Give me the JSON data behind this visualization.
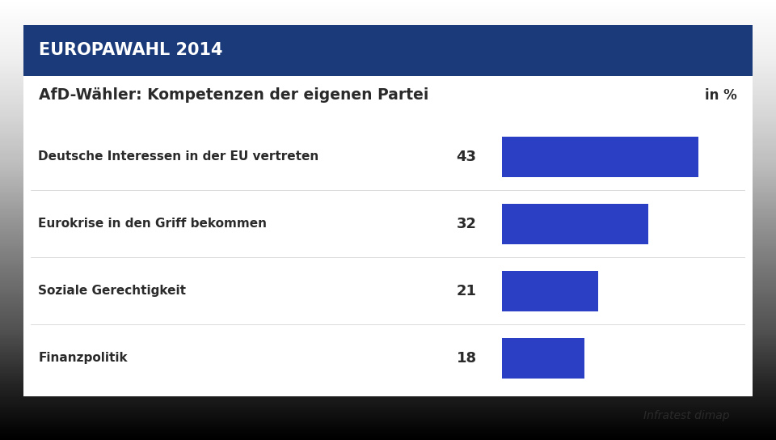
{
  "header_text": "EUROPAWAHL 2014",
  "header_bg_color": "#1a3a7a",
  "header_text_color": "#ffffff",
  "subtitle": "AfD-Wähler: Kompetenzen der eigenen Partei",
  "subtitle_right": "in %",
  "subtitle_text_color": "#2a2a2a",
  "categories": [
    "Deutsche Interessen in der EU vertreten",
    "Eurokrise in den Griff bekommen",
    "Soziale Gerechtigkeit",
    "Finanzpolitik"
  ],
  "values": [
    43,
    32,
    21,
    18
  ],
  "bar_color": "#2a3fc4",
  "value_color": "#2a2a2a",
  "label_color": "#2a2a2a",
  "source_text": "Infratest dimap",
  "max_value": 50,
  "bar_height": 0.6
}
